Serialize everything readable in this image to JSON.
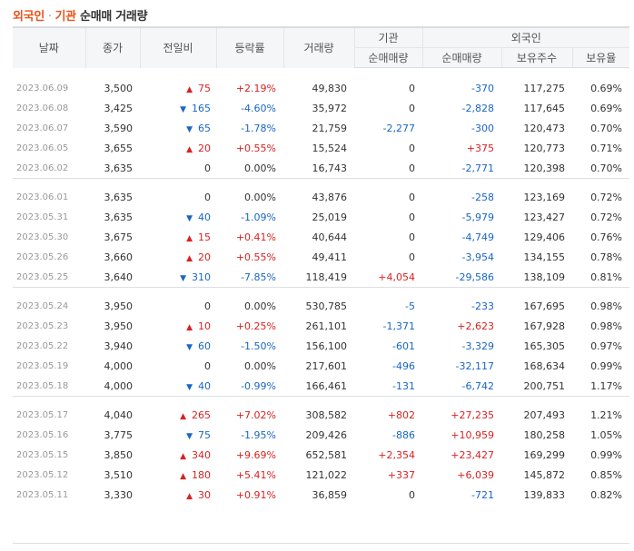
{
  "title": {
    "part1": "외국인",
    "sep": " · ",
    "part2": "기관",
    "rest": " 순매매 거래량"
  },
  "headers": {
    "date": "날짜",
    "close": "종가",
    "change": "전일비",
    "rate": "등락률",
    "volume": "거래량",
    "inst": "기관",
    "foreign": "외국인",
    "inst_net": "순매매량",
    "foreign_net": "순매매량",
    "foreign_hold": "보유주수",
    "foreign_ratio": "보유율"
  },
  "colors": {
    "up": "#d92121",
    "down": "#1966c4",
    "accent": "#e8541c"
  },
  "groups": [
    [
      {
        "date": "2023.06.09",
        "close": "3,500",
        "dir": "up",
        "change": "75",
        "rate": "+2.19%",
        "volume": "49,830",
        "inst": "0",
        "foreign": "-370",
        "hold": "117,275",
        "ratio": "0.69%"
      },
      {
        "date": "2023.06.08",
        "close": "3,425",
        "dir": "down",
        "change": "165",
        "rate": "-4.60%",
        "volume": "35,972",
        "inst": "0",
        "foreign": "-2,828",
        "hold": "117,645",
        "ratio": "0.69%"
      },
      {
        "date": "2023.06.07",
        "close": "3,590",
        "dir": "down",
        "change": "65",
        "rate": "-1.78%",
        "volume": "21,759",
        "inst": "-2,277",
        "foreign": "-300",
        "hold": "120,473",
        "ratio": "0.70%"
      },
      {
        "date": "2023.06.05",
        "close": "3,655",
        "dir": "up",
        "change": "20",
        "rate": "+0.55%",
        "volume": "15,524",
        "inst": "0",
        "foreign": "+375",
        "hold": "120,773",
        "ratio": "0.71%"
      },
      {
        "date": "2023.06.02",
        "close": "3,635",
        "dir": "none",
        "change": "0",
        "rate": "0.00%",
        "volume": "16,743",
        "inst": "0",
        "foreign": "-2,771",
        "hold": "120,398",
        "ratio": "0.70%"
      }
    ],
    [
      {
        "date": "2023.06.01",
        "close": "3,635",
        "dir": "none",
        "change": "0",
        "rate": "0.00%",
        "volume": "43,876",
        "inst": "0",
        "foreign": "-258",
        "hold": "123,169",
        "ratio": "0.72%"
      },
      {
        "date": "2023.05.31",
        "close": "3,635",
        "dir": "down",
        "change": "40",
        "rate": "-1.09%",
        "volume": "25,019",
        "inst": "0",
        "foreign": "-5,979",
        "hold": "123,427",
        "ratio": "0.72%"
      },
      {
        "date": "2023.05.30",
        "close": "3,675",
        "dir": "up",
        "change": "15",
        "rate": "+0.41%",
        "volume": "40,644",
        "inst": "0",
        "foreign": "-4,749",
        "hold": "129,406",
        "ratio": "0.76%"
      },
      {
        "date": "2023.05.26",
        "close": "3,660",
        "dir": "up",
        "change": "20",
        "rate": "+0.55%",
        "volume": "49,411",
        "inst": "0",
        "foreign": "-3,954",
        "hold": "134,155",
        "ratio": "0.78%"
      },
      {
        "date": "2023.05.25",
        "close": "3,640",
        "dir": "down",
        "change": "310",
        "rate": "-7.85%",
        "volume": "118,419",
        "inst": "+4,054",
        "foreign": "-29,586",
        "hold": "138,109",
        "ratio": "0.81%"
      }
    ],
    [
      {
        "date": "2023.05.24",
        "close": "3,950",
        "dir": "none",
        "change": "0",
        "rate": "0.00%",
        "volume": "530,785",
        "inst": "-5",
        "foreign": "-233",
        "hold": "167,695",
        "ratio": "0.98%"
      },
      {
        "date": "2023.05.23",
        "close": "3,950",
        "dir": "up",
        "change": "10",
        "rate": "+0.25%",
        "volume": "261,101",
        "inst": "-1,371",
        "foreign": "+2,623",
        "hold": "167,928",
        "ratio": "0.98%"
      },
      {
        "date": "2023.05.22",
        "close": "3,940",
        "dir": "down",
        "change": "60",
        "rate": "-1.50%",
        "volume": "156,100",
        "inst": "-601",
        "foreign": "-3,329",
        "hold": "165,305",
        "ratio": "0.97%"
      },
      {
        "date": "2023.05.19",
        "close": "4,000",
        "dir": "none",
        "change": "0",
        "rate": "0.00%",
        "volume": "217,601",
        "inst": "-496",
        "foreign": "-32,117",
        "hold": "168,634",
        "ratio": "0.99%"
      },
      {
        "date": "2023.05.18",
        "close": "4,000",
        "dir": "down",
        "change": "40",
        "rate": "-0.99%",
        "volume": "166,461",
        "inst": "-131",
        "foreign": "-6,742",
        "hold": "200,751",
        "ratio": "1.17%"
      }
    ],
    [
      {
        "date": "2023.05.17",
        "close": "4,040",
        "dir": "up",
        "change": "265",
        "rate": "+7.02%",
        "volume": "308,582",
        "inst": "+802",
        "foreign": "+27,235",
        "hold": "207,493",
        "ratio": "1.21%"
      },
      {
        "date": "2023.05.16",
        "close": "3,775",
        "dir": "down",
        "change": "75",
        "rate": "-1.95%",
        "volume": "209,426",
        "inst": "-886",
        "foreign": "+10,959",
        "hold": "180,258",
        "ratio": "1.05%"
      },
      {
        "date": "2023.05.15",
        "close": "3,850",
        "dir": "up",
        "change": "340",
        "rate": "+9.69%",
        "volume": "652,581",
        "inst": "+2,354",
        "foreign": "+23,427",
        "hold": "169,299",
        "ratio": "0.99%"
      },
      {
        "date": "2023.05.12",
        "close": "3,510",
        "dir": "up",
        "change": "180",
        "rate": "+5.41%",
        "volume": "121,022",
        "inst": "+337",
        "foreign": "+6,039",
        "hold": "145,872",
        "ratio": "0.85%"
      },
      {
        "date": "2023.05.11",
        "close": "3,330",
        "dir": "up",
        "change": "30",
        "rate": "+0.91%",
        "volume": "36,859",
        "inst": "0",
        "foreign": "-721",
        "hold": "139,833",
        "ratio": "0.82%"
      }
    ]
  ]
}
